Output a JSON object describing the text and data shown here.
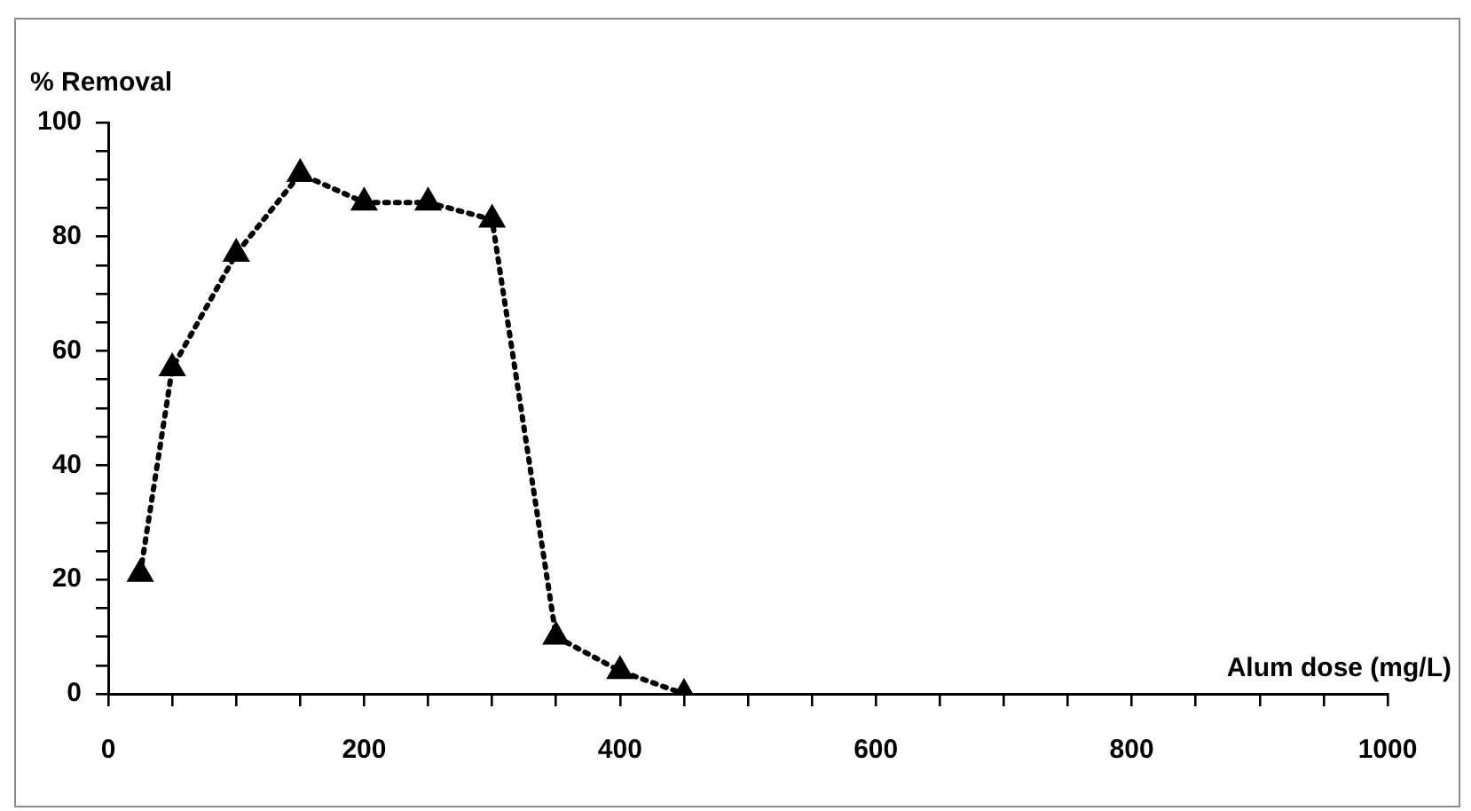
{
  "chart_data": {
    "type": "line",
    "xlabel": "Alum dose (mg/L)",
    "ylabel": "% Removal",
    "x": [
      25,
      50,
      100,
      150,
      200,
      250,
      300,
      350,
      400,
      450
    ],
    "series": [
      {
        "color": "#000000",
        "values": [
          21,
          57,
          77,
          91,
          86,
          86,
          83,
          10,
          4,
          0
        ]
      }
    ],
    "xlim": [
      0,
      1000
    ],
    "xticks": [
      0,
      {
        "value": 50,
        "label": null
      },
      {
        "value": 100,
        "label": null
      },
      {
        "value": 150,
        "label": null
      },
      200,
      {
        "value": 250,
        "label": null
      },
      {
        "value": 300,
        "label": null
      },
      {
        "value": 350,
        "label": null
      },
      400,
      {
        "value": 450,
        "label": null
      },
      {
        "value": 500,
        "label": null
      },
      {
        "value": 550,
        "label": null
      },
      600,
      {
        "value": 650,
        "label": null
      },
      {
        "value": 700,
        "label": null
      },
      {
        "value": 750,
        "label": null
      },
      800,
      {
        "value": 850,
        "label": null
      },
      {
        "value": 900,
        "label": null
      },
      {
        "value": 950,
        "label": null
      },
      1000
    ],
    "ylim": [
      0,
      100
    ],
    "yticks": [
      0,
      {
        "value": 5,
        "label": null
      },
      {
        "value": 10,
        "label": null
      },
      {
        "value": 15,
        "label": null
      },
      20,
      {
        "value": 25,
        "label": null
      },
      {
        "value": 30,
        "label": null
      },
      {
        "value": 35,
        "label": null
      },
      40,
      {
        "value": 45,
        "label": null
      },
      {
        "value": 50,
        "label": null
      },
      {
        "value": 55,
        "label": null
      },
      60,
      {
        "value": 65,
        "label": null
      },
      {
        "value": 70,
        "label": null
      },
      {
        "value": 75,
        "label": null
      },
      80,
      {
        "value": 85,
        "label": null
      },
      {
        "value": 90,
        "label": null
      },
      {
        "value": 95,
        "label": null
      },
      100
    ],
    "grid": false,
    "legend": false,
    "marker": "triangle",
    "line_style": "dotted"
  }
}
